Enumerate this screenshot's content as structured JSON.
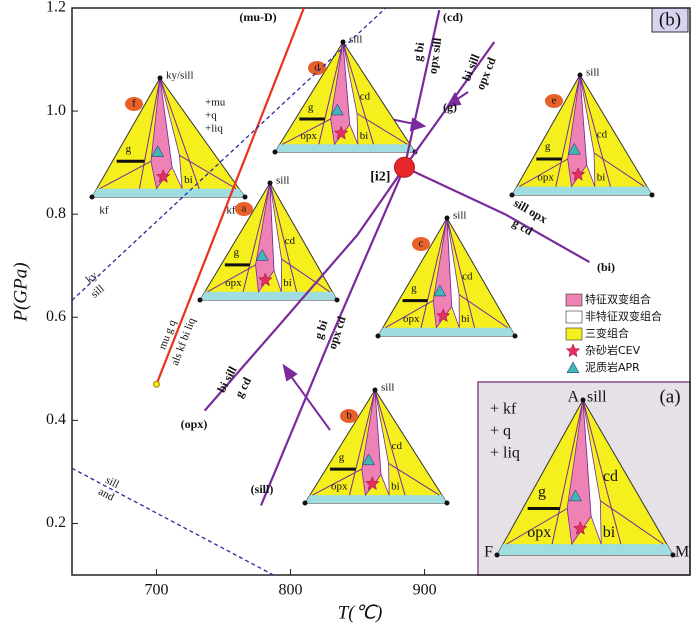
{
  "chart_data": {
    "type": "line",
    "xlabel": "T(℃)",
    "ylabel": "P(GPa)",
    "panel_label": "(b)",
    "xlim": [
      637,
      1098
    ],
    "xticks": [
      700,
      800,
      900
    ],
    "ylim": [
      0.1,
      1.2
    ],
    "yticks": [
      0.2,
      0.4,
      0.6,
      0.8,
      {
        "value": 1.0,
        "label": "1.0"
      },
      1.2
    ],
    "reactions": [
      {
        "color": "#e8321e",
        "style": "solid",
        "x": [
          700,
          810
        ],
        "y": [
          0.47,
          1.2
        ],
        "end_label": "(mu-D)",
        "labels": [
          "mu g q",
          "als kf bi liq"
        ]
      },
      {
        "color": "#2b2b9a",
        "style": "dashed",
        "x": [
          637,
          871
        ],
        "y": [
          0.633,
          1.2
        ],
        "labels": [
          "ky",
          "sill"
        ]
      },
      {
        "color": "#2b2b9a",
        "style": "dashed",
        "x": [
          637,
          788
        ],
        "y": [
          0.307,
          0.099
        ],
        "labels": [
          "sill",
          "and"
        ]
      },
      {
        "color": "#7a2a9a",
        "style": "solid",
        "x": [
          736,
          790,
          850,
          885
        ],
        "y": [
          0.419,
          0.58,
          0.76,
          0.891
        ],
        "end_label": "(opx)",
        "labels": [
          "bi sill",
          "g cd"
        ]
      },
      {
        "color": "#7a2a9a",
        "style": "solid",
        "x": [
          778,
          830,
          885
        ],
        "y": [
          0.235,
          0.56,
          0.891
        ],
        "end_label": "(sill)",
        "labels": [
          "g bi",
          "opx cd"
        ]
      },
      {
        "color": "#7a2a9a",
        "style": "solid",
        "x": [
          885,
          911
        ],
        "y": [
          0.891,
          1.196
        ],
        "end_label": "(cd)",
        "labels": [
          "g bi",
          "opx sill"
        ]
      },
      {
        "color": "#7a2a9a",
        "style": "solid",
        "x": [
          885,
          952
        ],
        "y": [
          0.891,
          1.134
        ],
        "end_label": "(g)",
        "labels": [
          "bi sill",
          "opx cd"
        ]
      },
      {
        "color": "#7a2a9a",
        "style": "solid",
        "x": [
          885,
          960,
          1023
        ],
        "y": [
          0.891,
          0.8,
          0.707
        ],
        "end_label": "(bi)",
        "labels": [
          "sill opx",
          "g cd"
        ]
      }
    ],
    "points": [
      {
        "label": "[i2]",
        "x": 885,
        "y": 0.891,
        "color": "#e8262b"
      },
      {
        "x": 700,
        "y": 0.47,
        "color": "#f5e71e"
      }
    ],
    "triangles": [
      {
        "tag": "f",
        "apex": "ky/sill",
        "labels": {
          "g": "g",
          "bi": "bi"
        },
        "extras": [
          "+mu",
          "+q",
          "+liq"
        ],
        "corners": [
          "kf",
          "kf"
        ]
      },
      {
        "tag": "d",
        "apex": "sill",
        "labels": {
          "g": "g",
          "opx": "opx",
          "cd": "cd",
          "bi": "bi"
        }
      },
      {
        "tag": "e",
        "apex": "sill",
        "labels": {
          "g": "g",
          "opx": "opx",
          "cd": "cd",
          "bi": "bi"
        }
      },
      {
        "tag": "a",
        "apex": "sill",
        "labels": {
          "g": "g",
          "opx": "opx",
          "cd": "cd",
          "bi": "bi"
        }
      },
      {
        "tag": "c",
        "apex": "sill",
        "labels": {
          "g": "g",
          "opx": "opx",
          "cd": "cd",
          "bi": "bi"
        }
      },
      {
        "tag": "b",
        "apex": "sill",
        "labels": {
          "g": "g",
          "opx": "opx",
          "cd": "cd",
          "bi": "bi"
        }
      }
    ],
    "inset": {
      "panel_label": "(a)",
      "apex": "A",
      "apex2": "sill",
      "corners": [
        "F",
        "M"
      ],
      "extras": [
        "+ kf",
        "+ q",
        "+ liq"
      ],
      "labels": {
        "g": "g",
        "opx": "opx",
        "cd": "cd",
        "bi": "bi"
      }
    },
    "legend": [
      {
        "label": "特征双变组合",
        "color": "#ee82b4",
        "marker": "rect"
      },
      {
        "label": "非特征双变组合",
        "color": "#ffffff",
        "marker": "rect"
      },
      {
        "label": "三变组合",
        "color": "#f5ef1e",
        "marker": "rect"
      },
      {
        "label": "杂砂岩CEV",
        "color": "#e03060",
        "marker": "star"
      },
      {
        "label": "泥质岩APR",
        "color": "#3fb6b8",
        "marker": "triangle"
      }
    ]
  }
}
